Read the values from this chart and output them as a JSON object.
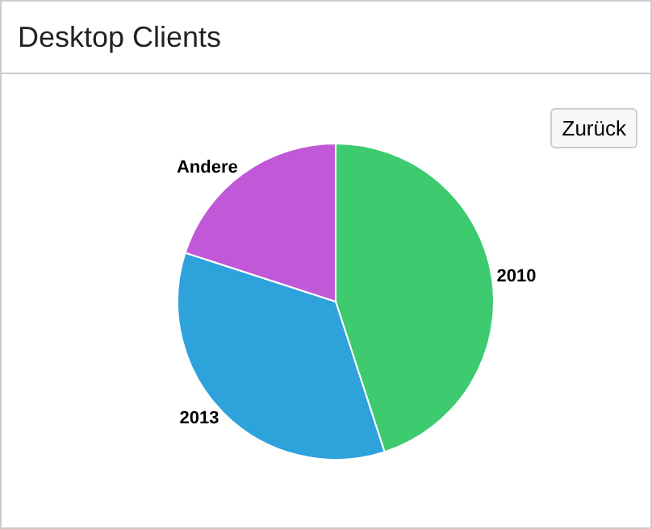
{
  "chart_data": {
    "type": "pie",
    "title": "Desktop Clients",
    "categories": [
      "2010",
      "2013",
      "Andere"
    ],
    "values": [
      45,
      35,
      20
    ],
    "colors": [
      "#3ecb6f",
      "#2ea3db",
      "#c058d8"
    ],
    "annotations": [
      "Zurück"
    ],
    "legend": false
  }
}
